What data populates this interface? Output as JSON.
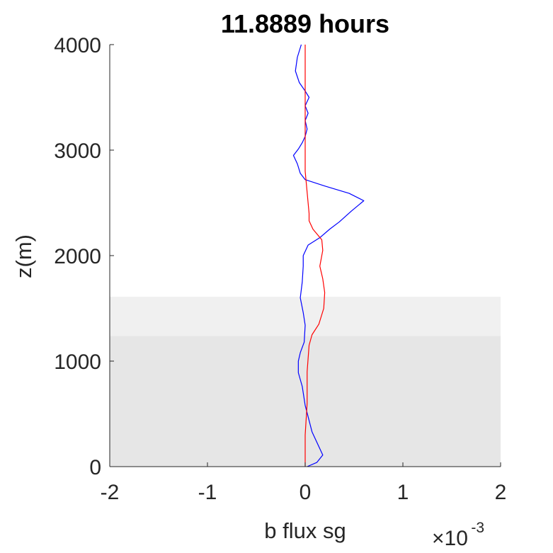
{
  "chart_data": {
    "type": "line",
    "title": "11.8889 hours",
    "xlabel": "b flux sg",
    "ylabel": "z(m)",
    "x_exponent_label": "×10",
    "x_exponent_power": "-3",
    "x_scale": 0.001,
    "xlim": [
      -2,
      2
    ],
    "ylim": [
      0,
      4000
    ],
    "xticks": [
      -2,
      -1,
      0,
      1,
      2
    ],
    "yticks": [
      0,
      1000,
      2000,
      3000,
      4000
    ],
    "grid": false,
    "legend": "none",
    "shaded_bands": [
      {
        "y0": 0,
        "y1": 1240,
        "color": "#e6e6e6"
      },
      {
        "y0": 1240,
        "y1": 1610,
        "color": "#f0f0f0"
      }
    ],
    "series": [
      {
        "color": "#0000ff",
        "points": [
          [
            0.02,
            0
          ],
          [
            0.12,
            40
          ],
          [
            0.18,
            110
          ],
          [
            0.07,
            330
          ],
          [
            0.0,
            580
          ],
          [
            -0.03,
            760
          ],
          [
            -0.07,
            890
          ],
          [
            -0.07,
            1000
          ],
          [
            -0.05,
            1080
          ],
          [
            -0.01,
            1180
          ],
          [
            0.0,
            1340
          ],
          [
            -0.02,
            1460
          ],
          [
            -0.05,
            1600
          ],
          [
            -0.03,
            1750
          ],
          [
            -0.02,
            1900
          ],
          [
            -0.02,
            2000
          ],
          [
            0.03,
            2100
          ],
          [
            0.15,
            2170
          ],
          [
            0.25,
            2250
          ],
          [
            0.35,
            2320
          ],
          [
            0.47,
            2420
          ],
          [
            0.6,
            2520
          ],
          [
            0.45,
            2590
          ],
          [
            0.2,
            2660
          ],
          [
            0.0,
            2720
          ],
          [
            -0.05,
            2780
          ],
          [
            -0.08,
            2870
          ],
          [
            -0.12,
            2950
          ],
          [
            -0.07,
            3010
          ],
          [
            -0.03,
            3070
          ],
          [
            0.0,
            3130
          ],
          [
            0.02,
            3200
          ],
          [
            0.0,
            3280
          ],
          [
            0.03,
            3350
          ],
          [
            0.0,
            3420
          ],
          [
            0.04,
            3500
          ],
          [
            0.0,
            3560
          ],
          [
            -0.06,
            3640
          ],
          [
            -0.1,
            3750
          ],
          [
            -0.08,
            3880
          ],
          [
            -0.04,
            4000
          ]
        ]
      },
      {
        "color": "#ff0000",
        "points": [
          [
            0.0,
            0
          ],
          [
            0.0,
            300
          ],
          [
            0.02,
            600
          ],
          [
            0.02,
            900
          ],
          [
            0.04,
            1150
          ],
          [
            0.07,
            1250
          ],
          [
            0.14,
            1350
          ],
          [
            0.19,
            1500
          ],
          [
            0.2,
            1650
          ],
          [
            0.18,
            1780
          ],
          [
            0.15,
            1900
          ],
          [
            0.18,
            2050
          ],
          [
            0.17,
            2150
          ],
          [
            0.08,
            2250
          ],
          [
            0.04,
            2330
          ],
          [
            0.04,
            2400
          ],
          [
            0.03,
            2500
          ],
          [
            0.02,
            2600
          ],
          [
            0.01,
            2700
          ],
          [
            0.0,
            2800
          ],
          [
            0.0,
            3000
          ],
          [
            0.0,
            3300
          ],
          [
            0.0,
            3600
          ],
          [
            0.0,
            4000
          ]
        ]
      }
    ]
  }
}
